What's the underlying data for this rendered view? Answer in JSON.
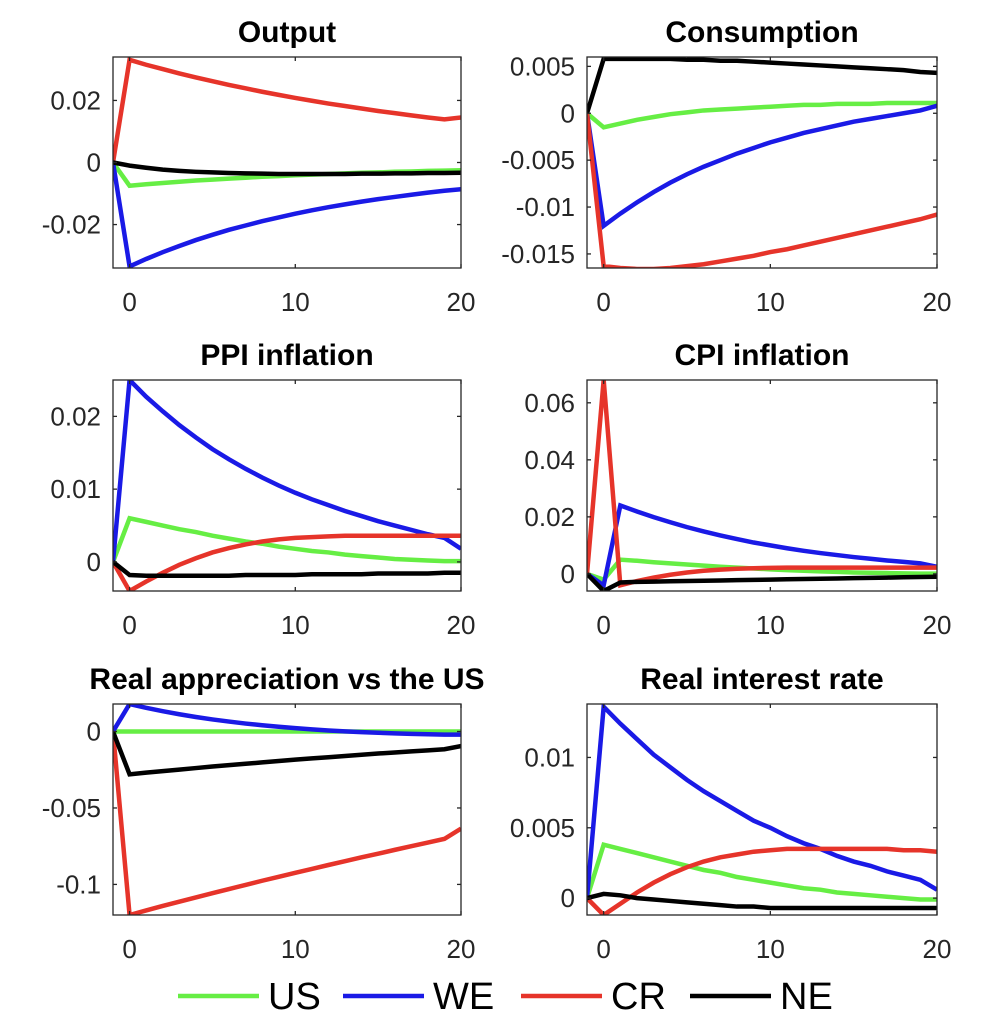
{
  "x": [
    -1,
    0,
    1,
    2,
    3,
    4,
    5,
    6,
    7,
    8,
    9,
    10,
    11,
    12,
    13,
    14,
    15,
    16,
    17,
    18,
    19,
    20
  ],
  "chart_data": [
    {
      "type": "line",
      "title": "Output",
      "xlim": [
        -1,
        20
      ],
      "ylim": [
        -0.034,
        0.034
      ],
      "xticks": [
        0,
        10,
        20
      ],
      "xtick_labels": [
        "0",
        "10",
        "20"
      ],
      "yticks": [
        -0.02,
        0,
        0.02
      ],
      "ytick_labels": [
        "-0.02",
        "0",
        "0.02"
      ],
      "series": [
        {
          "name": "US",
          "color": "#66ee44",
          "values": [
            0,
            -0.0075,
            -0.007,
            -0.0066,
            -0.0062,
            -0.0058,
            -0.0055,
            -0.0052,
            -0.0049,
            -0.0046,
            -0.0044,
            -0.0041,
            -0.0039,
            -0.0037,
            -0.0035,
            -0.0033,
            -0.0032,
            -0.003,
            -0.0029,
            -0.0027,
            -0.0026,
            -0.0025
          ]
        },
        {
          "name": "WE",
          "color": "#1a1ae6",
          "values": [
            0,
            -0.0335,
            -0.0311,
            -0.0289,
            -0.0269,
            -0.025,
            -0.0233,
            -0.0217,
            -0.0203,
            -0.0189,
            -0.0177,
            -0.0165,
            -0.0154,
            -0.0144,
            -0.0135,
            -0.0126,
            -0.0118,
            -0.0111,
            -0.0104,
            -0.0097,
            -0.0091,
            -0.0086
          ]
        },
        {
          "name": "CR",
          "color": "#e6342a",
          "values": [
            0,
            0.0331,
            0.0315,
            0.0301,
            0.0287,
            0.0274,
            0.0262,
            0.025,
            0.0239,
            0.0228,
            0.0218,
            0.0208,
            0.0199,
            0.019,
            0.0182,
            0.0174,
            0.0166,
            0.0159,
            0.0152,
            0.0145,
            0.0139,
            0.0145
          ]
        },
        {
          "name": "NE",
          "color": "#000000",
          "values": [
            0,
            -0.001,
            -0.0017,
            -0.0023,
            -0.0027,
            -0.003,
            -0.0032,
            -0.0034,
            -0.0035,
            -0.0036,
            -0.0037,
            -0.0037,
            -0.0037,
            -0.0037,
            -0.0037,
            -0.0036,
            -0.0036,
            -0.0035,
            -0.0035,
            -0.0034,
            -0.0034,
            -0.0033
          ]
        }
      ]
    },
    {
      "type": "line",
      "title": "Consumption",
      "xlim": [
        -1,
        20
      ],
      "ylim": [
        -0.0165,
        0.006
      ],
      "xticks": [
        0,
        10,
        20
      ],
      "xtick_labels": [
        "0",
        "10",
        "20"
      ],
      "yticks": [
        -0.015,
        -0.01,
        -0.005,
        0,
        0.005
      ],
      "ytick_labels": [
        "-0.015",
        "-0.01",
        "-0.005",
        "0",
        "0.005"
      ],
      "series": [
        {
          "name": "US",
          "color": "#66ee44",
          "values": [
            0,
            -0.0015,
            -0.0011,
            -0.0007,
            -0.0004,
            -0.0001,
            0.0001,
            0.0003,
            0.0004,
            0.0005,
            0.0006,
            0.0007,
            0.0008,
            0.0009,
            0.0009,
            0.001,
            0.001,
            0.001,
            0.0011,
            0.0011,
            0.0011,
            0.0011
          ]
        },
        {
          "name": "WE",
          "color": "#1a1ae6",
          "values": [
            0,
            -0.012,
            -0.0107,
            -0.0095,
            -0.0084,
            -0.0074,
            -0.0065,
            -0.0057,
            -0.005,
            -0.0043,
            -0.0037,
            -0.0031,
            -0.0026,
            -0.0021,
            -0.0017,
            -0.0013,
            -0.0009,
            -0.0006,
            -0.0003,
            0,
            0.0003,
            0.0008
          ]
        },
        {
          "name": "CR",
          "color": "#e6342a",
          "values": [
            0,
            -0.0163,
            -0.0165,
            -0.0166,
            -0.0166,
            -0.0165,
            -0.0163,
            -0.0161,
            -0.0158,
            -0.0155,
            -0.0152,
            -0.0148,
            -0.0145,
            -0.0141,
            -0.0137,
            -0.0133,
            -0.0129,
            -0.0125,
            -0.0121,
            -0.0117,
            -0.0113,
            -0.0108
          ]
        },
        {
          "name": "NE",
          "color": "#000000",
          "values": [
            0,
            0.0058,
            0.0058,
            0.0058,
            0.0058,
            0.0058,
            0.0057,
            0.0057,
            0.0056,
            0.0056,
            0.0055,
            0.0054,
            0.0053,
            0.0052,
            0.0051,
            0.005,
            0.0049,
            0.0048,
            0.0047,
            0.0046,
            0.0044,
            0.0043
          ]
        }
      ]
    },
    {
      "type": "line",
      "title": "PPI inflation",
      "xlim": [
        -1,
        20
      ],
      "ylim": [
        -0.004,
        0.025
      ],
      "xticks": [
        0,
        10,
        20
      ],
      "xtick_labels": [
        "0",
        "10",
        "20"
      ],
      "yticks": [
        0,
        0.01,
        0.02
      ],
      "ytick_labels": [
        "0",
        "0.01",
        "0.02"
      ],
      "series": [
        {
          "name": "US",
          "color": "#66ee44",
          "values": [
            0,
            0.006,
            0.0055,
            0.005,
            0.0045,
            0.0041,
            0.0036,
            0.0032,
            0.0028,
            0.0025,
            0.0021,
            0.0018,
            0.0015,
            0.0013,
            0.001,
            0.0008,
            0.0006,
            0.0004,
            0.0003,
            0.0002,
            0.0001,
            0.0001
          ]
        },
        {
          "name": "WE",
          "color": "#1a1ae6",
          "values": [
            0,
            0.025,
            0.0227,
            0.0207,
            0.0188,
            0.0171,
            0.0155,
            0.0141,
            0.0128,
            0.0116,
            0.0105,
            0.0095,
            0.0086,
            0.0078,
            0.007,
            0.0063,
            0.0056,
            0.005,
            0.0044,
            0.0038,
            0.0033,
            0.0018
          ]
        },
        {
          "name": "CR",
          "color": "#e6342a",
          "values": [
            0,
            -0.004,
            -0.0027,
            -0.0015,
            -0.0004,
            0.0005,
            0.0013,
            0.0019,
            0.0024,
            0.0028,
            0.0031,
            0.0033,
            0.0034,
            0.0035,
            0.0036,
            0.0036,
            0.0036,
            0.0036,
            0.0036,
            0.0036,
            0.0036,
            0.0036
          ]
        },
        {
          "name": "NE",
          "color": "#000000",
          "values": [
            0,
            -0.0018,
            -0.0019,
            -0.0019,
            -0.0019,
            -0.0019,
            -0.0019,
            -0.0019,
            -0.0018,
            -0.0018,
            -0.0018,
            -0.0018,
            -0.0017,
            -0.0017,
            -0.0017,
            -0.0017,
            -0.0016,
            -0.0016,
            -0.0016,
            -0.0016,
            -0.0015,
            -0.0015
          ]
        }
      ]
    },
    {
      "type": "line",
      "title": "CPI inflation",
      "xlim": [
        -1,
        20
      ],
      "ylim": [
        -0.006,
        0.068
      ],
      "xticks": [
        0,
        10,
        20
      ],
      "xtick_labels": [
        "0",
        "10",
        "20"
      ],
      "yticks": [
        0,
        0.02,
        0.04,
        0.06
      ],
      "ytick_labels": [
        "0",
        "0.02",
        "0.04",
        "0.06"
      ],
      "series": [
        {
          "name": "US",
          "color": "#66ee44",
          "values": [
            0,
            -0.002,
            0.005,
            0.0046,
            0.0041,
            0.0037,
            0.0033,
            0.0029,
            0.0025,
            0.0022,
            0.0019,
            0.0016,
            0.0013,
            0.0011,
            0.0009,
            0.0007,
            0.0005,
            0.0004,
            0.0003,
            0.0002,
            0.0001,
            0.0001
          ]
        },
        {
          "name": "WE",
          "color": "#1a1ae6",
          "values": [
            0,
            -0.004,
            0.024,
            0.0219,
            0.0199,
            0.0181,
            0.0164,
            0.0149,
            0.0135,
            0.0122,
            0.011,
            0.01,
            0.009,
            0.0081,
            0.0073,
            0.0066,
            0.0059,
            0.0053,
            0.0047,
            0.0042,
            0.0037,
            0.0025
          ]
        },
        {
          "name": "CR",
          "color": "#e6342a",
          "values": [
            0,
            0.068,
            -0.004,
            -0.0025,
            -0.0013,
            -0.0003,
            0.0005,
            0.0011,
            0.0015,
            0.0018,
            0.002,
            0.0021,
            0.0022,
            0.0022,
            0.0022,
            0.0022,
            0.0022,
            0.0022,
            0.0022,
            0.0022,
            0.0022,
            0.0022
          ]
        },
        {
          "name": "NE",
          "color": "#000000",
          "values": [
            0,
            -0.006,
            -0.003,
            -0.0028,
            -0.0027,
            -0.0026,
            -0.0025,
            -0.0024,
            -0.0023,
            -0.0022,
            -0.0021,
            -0.002,
            -0.0019,
            -0.0018,
            -0.0017,
            -0.0016,
            -0.0015,
            -0.0014,
            -0.0013,
            -0.0012,
            -0.0011,
            -0.001
          ]
        }
      ]
    },
    {
      "type": "line",
      "title": "Real appreciation vs the US",
      "xlim": [
        -1,
        20
      ],
      "ylim": [
        -0.12,
        0.018
      ],
      "xticks": [
        0,
        10,
        20
      ],
      "xtick_labels": [
        "0",
        "10",
        "20"
      ],
      "yticks": [
        -0.1,
        -0.05,
        0
      ],
      "ytick_labels": [
        "-0.1",
        "-0.05",
        "0"
      ],
      "series": [
        {
          "name": "US",
          "color": "#66ee44",
          "values": [
            0,
            0,
            0,
            0,
            0,
            0,
            0,
            0,
            0,
            0,
            0,
            0,
            0,
            0,
            0,
            0,
            0,
            0,
            0,
            0,
            0,
            0
          ]
        },
        {
          "name": "WE",
          "color": "#1a1ae6",
          "values": [
            0,
            0.018,
            0.0155,
            0.0133,
            0.0113,
            0.0095,
            0.0079,
            0.0065,
            0.0052,
            0.0041,
            0.0031,
            0.0022,
            0.0014,
            0.0007,
            0.0001,
            -0.0004,
            -0.0008,
            -0.0012,
            -0.0015,
            -0.0018,
            -0.002,
            -0.002
          ]
        },
        {
          "name": "CR",
          "color": "#e6342a",
          "values": [
            0,
            -0.12,
            -0.117,
            -0.1141,
            -0.1113,
            -0.1085,
            -0.1057,
            -0.103,
            -0.1003,
            -0.0976,
            -0.095,
            -0.0924,
            -0.0899,
            -0.0873,
            -0.0848,
            -0.0823,
            -0.0799,
            -0.0774,
            -0.075,
            -0.0726,
            -0.0702,
            -0.0635
          ]
        },
        {
          "name": "NE",
          "color": "#000000",
          "values": [
            0,
            -0.028,
            -0.0269,
            -0.0259,
            -0.0249,
            -0.0239,
            -0.0229,
            -0.022,
            -0.0211,
            -0.0202,
            -0.0193,
            -0.0184,
            -0.0176,
            -0.0168,
            -0.016,
            -0.0152,
            -0.0144,
            -0.0137,
            -0.013,
            -0.0123,
            -0.0116,
            -0.0095
          ]
        }
      ]
    },
    {
      "type": "line",
      "title": "Real interest rate",
      "xlim": [
        -1,
        20
      ],
      "ylim": [
        -0.0012,
        0.0138
      ],
      "xticks": [
        0,
        10,
        20
      ],
      "xtick_labels": [
        "0",
        "10",
        "20"
      ],
      "yticks": [
        0,
        0.005,
        0.01
      ],
      "ytick_labels": [
        "0",
        "0.005",
        "0.01"
      ],
      "series": [
        {
          "name": "US",
          "color": "#66ee44",
          "values": [
            0,
            0.0038,
            0.0035,
            0.0032,
            0.0029,
            0.0026,
            0.0023,
            0.002,
            0.0018,
            0.0015,
            0.0013,
            0.0011,
            0.0009,
            0.0007,
            0.0006,
            0.0004,
            0.0003,
            0.0002,
            0.0001,
            0,
            -0.0001,
            -0.0001
          ]
        },
        {
          "name": "WE",
          "color": "#1a1ae6",
          "values": [
            0,
            0.0136,
            0.0124,
            0.0113,
            0.0102,
            0.0093,
            0.0084,
            0.0076,
            0.0069,
            0.0062,
            0.0055,
            0.005,
            0.0044,
            0.0039,
            0.0035,
            0.003,
            0.0026,
            0.0023,
            0.0019,
            0.0016,
            0.0013,
            0.0006
          ]
        },
        {
          "name": "CR",
          "color": "#e6342a",
          "values": [
            0,
            -0.0012,
            -0.0004,
            0.0004,
            0.0011,
            0.0017,
            0.0022,
            0.0026,
            0.0029,
            0.0031,
            0.0033,
            0.0034,
            0.0035,
            0.0035,
            0.0035,
            0.0035,
            0.0035,
            0.0035,
            0.0035,
            0.0034,
            0.0034,
            0.0033
          ]
        },
        {
          "name": "NE",
          "color": "#000000",
          "values": [
            0,
            0.0003,
            0.0002,
            0,
            -0.0001,
            -0.0002,
            -0.0003,
            -0.0004,
            -0.0005,
            -0.0006,
            -0.0006,
            -0.0007,
            -0.0007,
            -0.0007,
            -0.0007,
            -0.0007,
            -0.0007,
            -0.0007,
            -0.0007,
            -0.0007,
            -0.0007,
            -0.0007
          ]
        }
      ]
    }
  ],
  "legend": {
    "placement": "bottom",
    "items": [
      {
        "label": "US",
        "color": "#66ee44"
      },
      {
        "label": "WE",
        "color": "#1a1ae6"
      },
      {
        "label": "CR",
        "color": "#e6342a"
      },
      {
        "label": "NE",
        "color": "#000000"
      }
    ]
  }
}
